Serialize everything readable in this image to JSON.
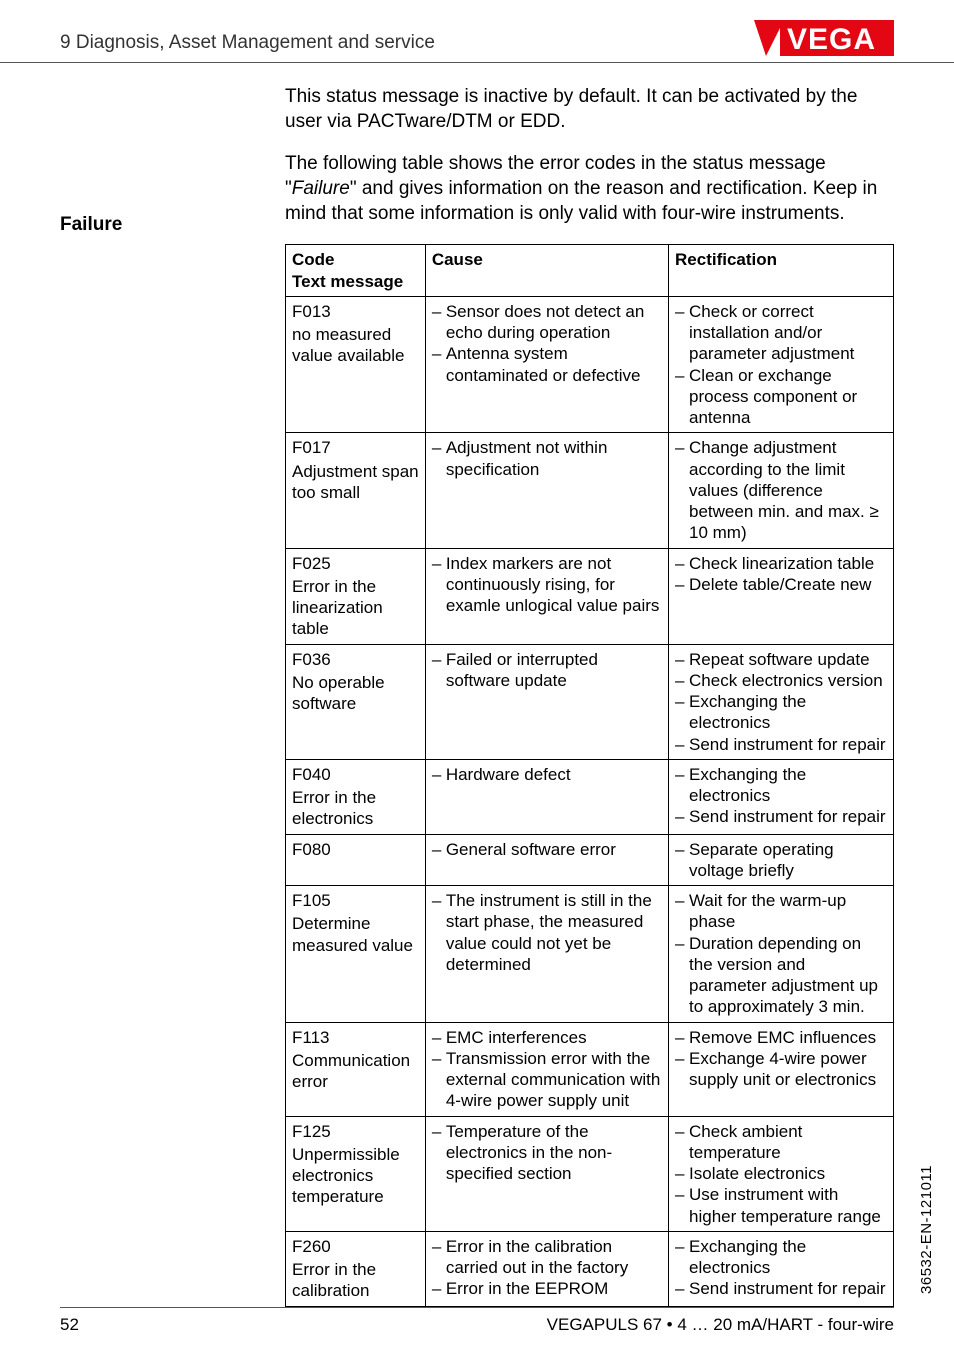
{
  "header": {
    "section_title": "9 Diagnosis, Asset Management and service"
  },
  "logo": {
    "text": "VEGA",
    "slash_color": "#e30613",
    "text_color": "#ffffff",
    "bg_color": "#e30613"
  },
  "intro1": "This status message is inactive by default. It can be activated by the user via PACTware/DTM or EDD.",
  "sidebar": {
    "failure": "Failure"
  },
  "intro2_pre": "The following table shows the error codes in the status message \"",
  "intro2_italic": "Failure",
  "intro2_post": "\" and gives information on the reason and rectification. Keep in mind that some information is only valid with four-wire instruments.",
  "table": {
    "headers": {
      "code": "Code",
      "text_msg": "Text message",
      "cause": "Cause",
      "rect": "Rectification"
    },
    "rows": [
      {
        "id": "F013",
        "desc": "no measured value available",
        "cause": [
          "Sensor does not detect an echo during operation",
          "Antenna system contaminated or defective"
        ],
        "rect": [
          "Check or correct installation and/or parameter adjustment",
          "Clean or exchange process component or antenna"
        ]
      },
      {
        "id": "F017",
        "desc": "Adjustment span too small",
        "cause": [
          "Adjustment not within specification"
        ],
        "rect": [
          "Change adjustment according to the limit values (difference between min. and max. ≥ 10 mm)"
        ]
      },
      {
        "id": "F025",
        "desc": "Error in the linearization table",
        "cause": [
          "Index markers are not continuously rising, for examle unlogical value pairs"
        ],
        "rect": [
          "Check linearization table",
          "Delete table/Create new"
        ]
      },
      {
        "id": "F036",
        "desc": "No operable software",
        "cause": [
          "Failed or interrupted software update"
        ],
        "rect": [
          "Repeat software update",
          "Check electronics version",
          "Exchanging the electronics",
          "Send instrument for repair"
        ]
      },
      {
        "id": "F040",
        "desc": "Error in the electronics",
        "cause": [
          "Hardware defect"
        ],
        "rect": [
          "Exchanging the electronics",
          "Send instrument for repair"
        ]
      },
      {
        "id": "F080",
        "desc": "",
        "cause": [
          "General software error"
        ],
        "rect": [
          "Separate operating voltage briefly"
        ]
      },
      {
        "id": "F105",
        "desc": "Determine measured value",
        "cause": [
          "The instrument is still in the start phase, the measured value could not yet be determined"
        ],
        "rect": [
          "Wait for the warm-up phase",
          "Duration depending on the version and parameter adjustment up to approximately 3 min."
        ]
      },
      {
        "id": "F113",
        "desc": "Communication error",
        "cause": [
          "EMC interferences",
          "Transmission error with the external communication with 4-wire power supply unit"
        ],
        "rect": [
          "Remove EMC influences",
          "Exchange 4-wire power supply unit or electronics"
        ]
      },
      {
        "id": "F125",
        "desc": "Unpermissible electronics temperature",
        "cause": [
          "Temperature of the electronics in the non-specified section"
        ],
        "rect": [
          "Check ambient temperature",
          "Isolate electronics",
          "Use instrument with higher temperature range"
        ]
      },
      {
        "id": "F260",
        "desc": "Error in the calibration",
        "cause": [
          "Error in the calibration carried out in the factory",
          "Error in the EEPROM"
        ],
        "rect": [
          "Exchanging the electronics",
          "Send instrument for repair"
        ]
      }
    ]
  },
  "footer": {
    "page": "52",
    "product": "VEGAPULS 67 • 4 … 20 mA/HART - four-wire"
  },
  "doc_id": "36532-EN-121011"
}
